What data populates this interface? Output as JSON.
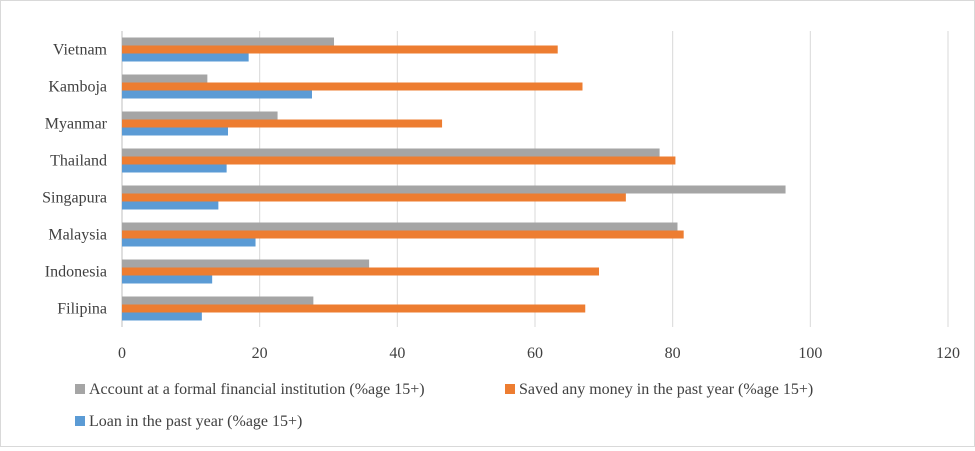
{
  "chart_data": {
    "type": "bar",
    "orientation": "horizontal",
    "categories": [
      "Vietnam",
      "Kamboja",
      "Myanmar",
      "Thailand",
      "Singapura",
      "Malaysia",
      "Indonesia",
      "Filipina"
    ],
    "series": [
      {
        "name": "Account at a formal financial institution (%age 15+)",
        "color": "#a5a5a5",
        "values": [
          30.8,
          12.4,
          22.6,
          78.1,
          96.4,
          80.7,
          35.9,
          27.8
        ]
      },
      {
        "name": "Saved any money in the past year (%age 15+)",
        "color": "#ed7d31",
        "values": [
          63.3,
          66.9,
          46.5,
          80.4,
          73.2,
          81.6,
          69.3,
          67.3
        ]
      },
      {
        "name": "Loan in the past year (%age 15+)",
        "color": "#5b9bd5",
        "values": [
          18.4,
          27.6,
          15.4,
          15.2,
          14.0,
          19.4,
          13.1,
          11.6
        ]
      }
    ],
    "xlim": [
      0,
      120
    ],
    "xticks": [
      "0",
      "20",
      "40",
      "60",
      "80",
      "100",
      "120"
    ],
    "grid": true,
    "legend_position": "bottom-left"
  }
}
